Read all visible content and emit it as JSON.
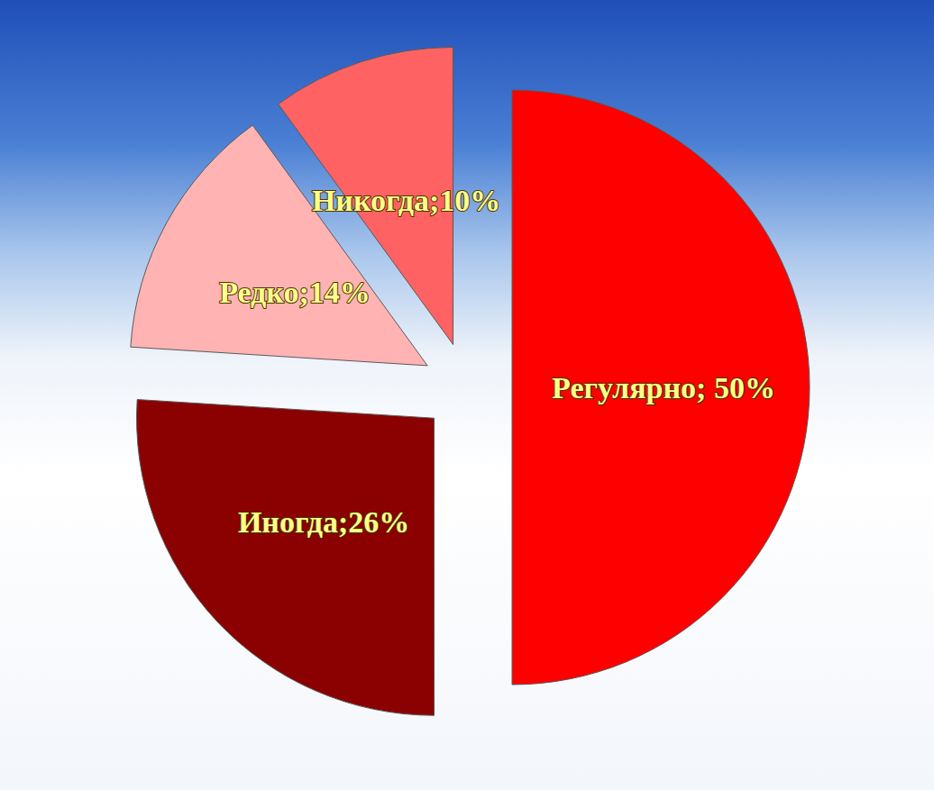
{
  "chart_data": {
    "type": "pie",
    "categories": [
      "Регулярно",
      "Иногда",
      "Редко",
      "Никогда"
    ],
    "values": [
      50,
      26,
      14,
      10
    ],
    "value_labels": [
      "Регулярно; 50%",
      "Иногда;26%",
      "Редко;14%",
      "Никогда;10%"
    ],
    "colors": [
      "#ff0000",
      "#8b0000",
      "#ffb3b3",
      "#ff6262"
    ],
    "data_labels": true
  }
}
